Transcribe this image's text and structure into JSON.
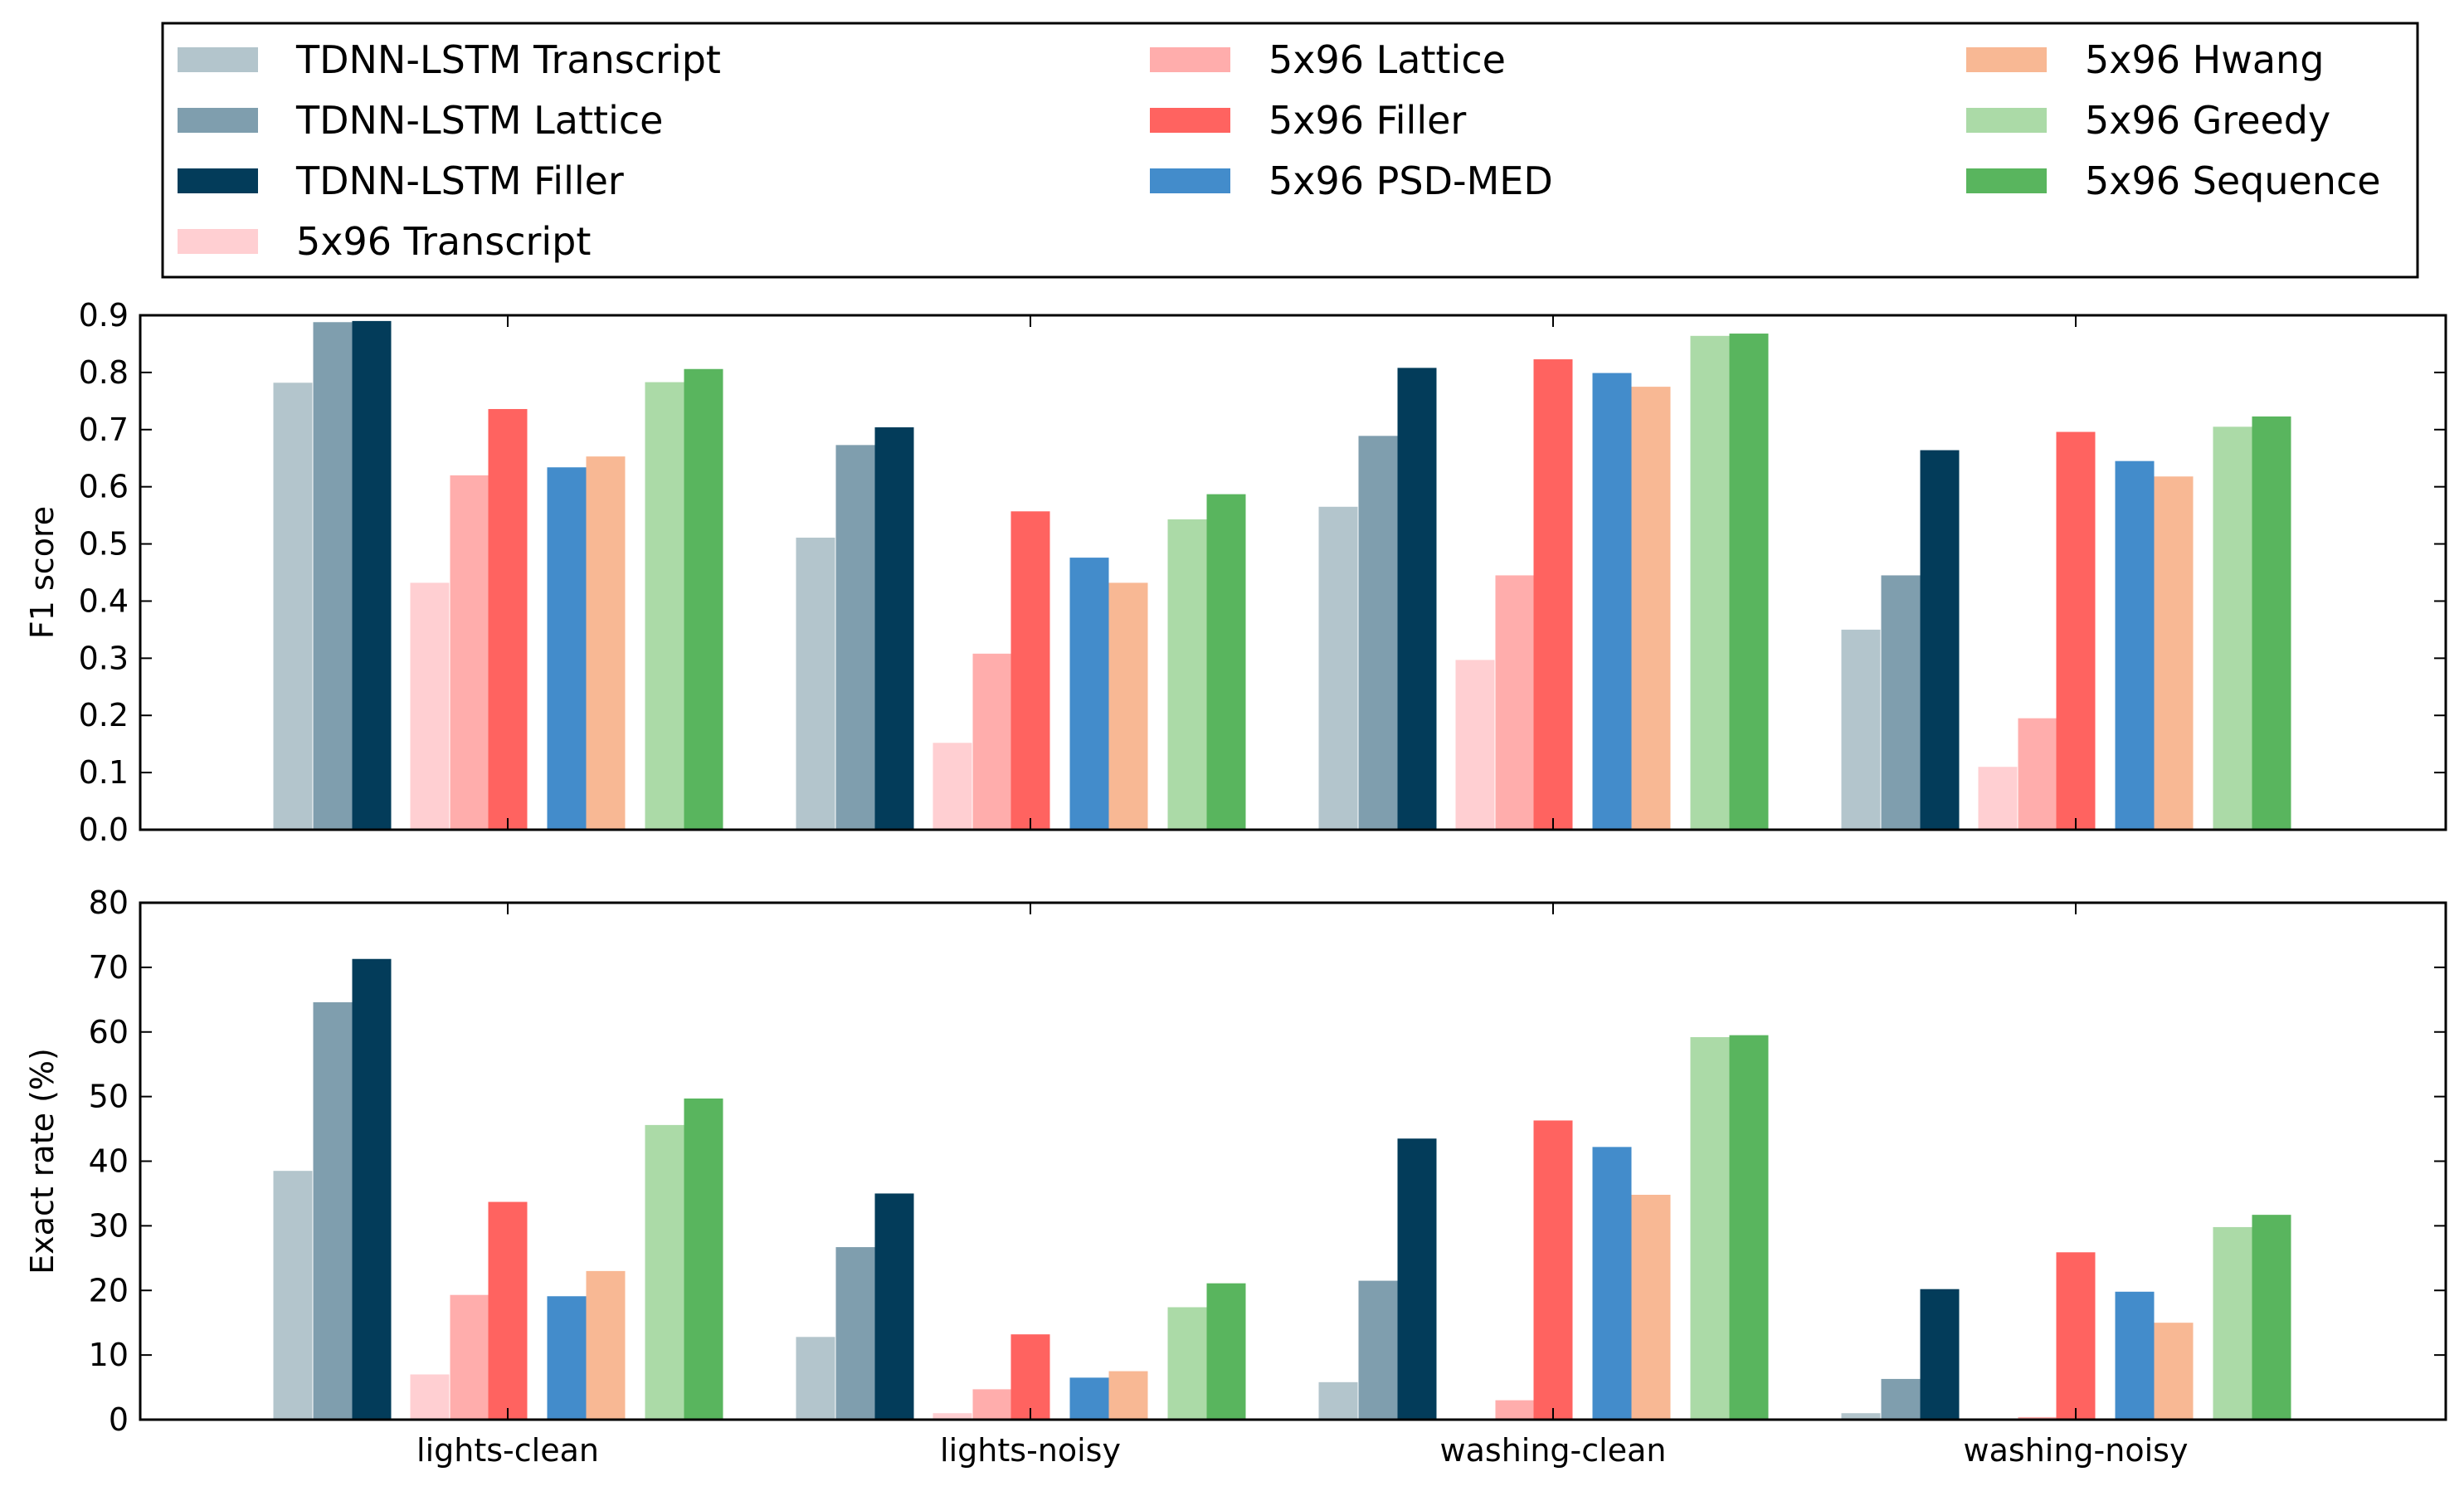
{
  "legend": {
    "entries": [
      {
        "label": "TDNN-LSTM Transcript",
        "color": "#b3c5cc"
      },
      {
        "label": "TDNN-LSTM Lattice",
        "color": "#7f9eae"
      },
      {
        "label": "TDNN-LSTM Filler",
        "color": "#033c5a"
      },
      {
        "label": "5x96 Transcript",
        "color": "#ffcfd2"
      },
      {
        "label": "5x96 Lattice",
        "color": "#ffadac"
      },
      {
        "label": "5x96 Filler",
        "color": "#ff6360"
      },
      {
        "label": "5x96 PSD-MED",
        "color": "#438ccb"
      },
      {
        "label": "5x96 Hwang",
        "color": "#f8b894"
      },
      {
        "label": "5x96 Greedy",
        "color": "#abdaa7"
      },
      {
        "label": "5x96 Sequence",
        "color": "#59b55e"
      }
    ]
  },
  "chart_data": [
    {
      "type": "bar",
      "ylabel": "F1 score",
      "xlabel": "",
      "ylim": [
        0,
        0.9
      ],
      "yticks": [
        "0.0",
        "0.1",
        "0.2",
        "0.3",
        "0.4",
        "0.5",
        "0.6",
        "0.7",
        "0.8",
        "0.9"
      ],
      "categories": [
        "lights-clean",
        "lights-noisy",
        "washing-clean",
        "washing-noisy"
      ],
      "show_category_labels": false,
      "series": [
        {
          "name": "TDNN-LSTM Transcript",
          "color": "#b3c5cc",
          "values": [
            0.782,
            0.511,
            0.565,
            0.35
          ]
        },
        {
          "name": "TDNN-LSTM Lattice",
          "color": "#7f9eae",
          "values": [
            0.888,
            0.673,
            0.689,
            0.445
          ]
        },
        {
          "name": "TDNN-LSTM Filler",
          "color": "#033c5a",
          "values": [
            0.89,
            0.704,
            0.808,
            0.664
          ]
        },
        {
          "name": "5x96 Transcript",
          "color": "#ffcfd2",
          "values": [
            0.432,
            0.152,
            0.297,
            0.11
          ]
        },
        {
          "name": "5x96 Lattice",
          "color": "#ffadac",
          "values": [
            0.62,
            0.308,
            0.445,
            0.195
          ]
        },
        {
          "name": "5x96 Filler",
          "color": "#ff6360",
          "values": [
            0.736,
            0.557,
            0.823,
            0.696
          ]
        },
        {
          "name": "5x96 PSD-MED",
          "color": "#438ccb",
          "values": [
            0.634,
            0.476,
            0.799,
            0.645
          ]
        },
        {
          "name": "5x96 Hwang",
          "color": "#f8b894",
          "values": [
            0.653,
            0.432,
            0.775,
            0.618
          ]
        },
        {
          "name": "5x96 Greedy",
          "color": "#abdaa7",
          "values": [
            0.783,
            0.543,
            0.864,
            0.705
          ]
        },
        {
          "name": "5x96 Sequence",
          "color": "#59b55e",
          "values": [
            0.806,
            0.587,
            0.868,
            0.723
          ]
        }
      ]
    },
    {
      "type": "bar",
      "ylabel": "Exact rate (%)",
      "xlabel": "",
      "ylim": [
        0,
        80
      ],
      "yticks": [
        "0",
        "10",
        "20",
        "30",
        "40",
        "50",
        "60",
        "70",
        "80"
      ],
      "categories": [
        "lights-clean",
        "lights-noisy",
        "washing-clean",
        "washing-noisy"
      ],
      "show_category_labels": true,
      "series": [
        {
          "name": "TDNN-LSTM Transcript",
          "color": "#b3c5cc",
          "values": [
            38.5,
            12.8,
            5.8,
            1.0
          ]
        },
        {
          "name": "TDNN-LSTM Lattice",
          "color": "#7f9eae",
          "values": [
            64.6,
            26.7,
            21.5,
            6.3
          ]
        },
        {
          "name": "TDNN-LSTM Filler",
          "color": "#033c5a",
          "values": [
            71.3,
            35.0,
            43.5,
            20.2
          ]
        },
        {
          "name": "5x96 Transcript",
          "color": "#ffcfd2",
          "values": [
            7.0,
            1.0,
            0.0,
            0.0
          ]
        },
        {
          "name": "5x96 Lattice",
          "color": "#ffadac",
          "values": [
            19.3,
            4.7,
            3.0,
            0.4
          ]
        },
        {
          "name": "5x96 Filler",
          "color": "#ff6360",
          "values": [
            33.7,
            13.2,
            46.3,
            25.9
          ]
        },
        {
          "name": "5x96 PSD-MED",
          "color": "#438ccb",
          "values": [
            19.1,
            6.5,
            42.2,
            19.8
          ]
        },
        {
          "name": "5x96 Hwang",
          "color": "#f8b894",
          "values": [
            23.0,
            7.5,
            34.8,
            15.0
          ]
        },
        {
          "name": "5x96 Greedy",
          "color": "#abdaa7",
          "values": [
            45.6,
            17.4,
            59.2,
            29.8
          ]
        },
        {
          "name": "5x96 Sequence",
          "color": "#59b55e",
          "values": [
            49.7,
            21.1,
            59.5,
            31.7
          ]
        }
      ]
    }
  ]
}
